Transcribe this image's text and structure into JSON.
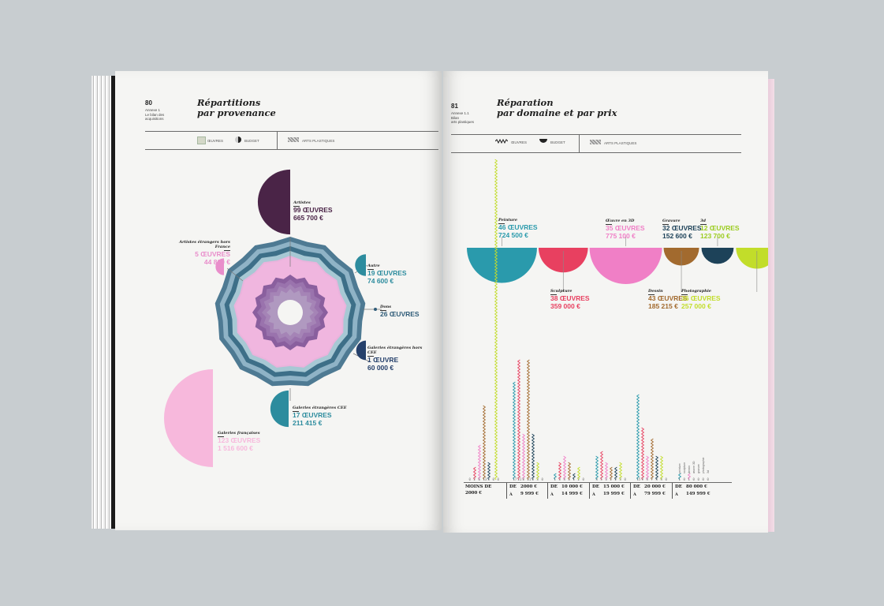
{
  "colors": {
    "teal": "#2a9aac",
    "red": "#e84060",
    "pink": "#f07fc6",
    "brown": "#a26a2e",
    "navy": "#1d4259",
    "lime": "#c2dd2a",
    "slate": "#4e7a93",
    "plum": "#4a2447",
    "light_pink": "#f5a0d0"
  },
  "left_page": {
    "number": "80",
    "meta": [
      "Annexe 1",
      "Le bilan des",
      "acquisitions"
    ],
    "title_line1": "Répartitions",
    "title_line2": "par provenance",
    "legend_works": "ŒUVRES",
    "legend_budget": "BUDGET",
    "legend_section": "ARTS PLASTIQUES"
  },
  "right_page": {
    "number": "81",
    "meta": [
      "Annexe 1.1",
      "Bilan",
      "arts plastiques"
    ],
    "title_line1": "Réparation",
    "title_line2": "par domaine et par prix",
    "legend_works": "ŒUVRES",
    "legend_budget": "BUDGET",
    "legend_section": "ARTS PLASTIQUES"
  },
  "chart_data": [
    {
      "type": "pie",
      "title_line1": "Répartitions",
      "title_line2": "par provenance",
      "slices": [
        {
          "name": "Artistes",
          "works": 99,
          "works_label": "99 ŒUVRES",
          "budget_label": "665 700 €",
          "color": "#4a2447"
        },
        {
          "name": "Artistes étrangers hors France",
          "works": 5,
          "works_label": "5 ŒUVRES",
          "budget_label": "44 800 €",
          "color": "#e98ecb"
        },
        {
          "name": "Autre",
          "works": 19,
          "works_label": "19 ŒUVRES",
          "budget_label": "74 600 €",
          "color": "#2d8c9e"
        },
        {
          "name": "Dons",
          "works": 26,
          "works_label": "26 ŒUVRES",
          "budget_label": "",
          "color": "#2f5c78"
        },
        {
          "name": "Galeries étrangères hors CEE",
          "works": 1,
          "works_label": "1 ŒUVRE",
          "budget_label": "60 000 €",
          "color": "#25406b"
        },
        {
          "name": "Galeries étrangères CEE",
          "works": 17,
          "works_label": "17 ŒUVRES",
          "budget_label": "211 415 €",
          "color": "#2d8c9e"
        },
        {
          "name": "Galeries françaises",
          "works": 123,
          "works_label": "123 ŒUVRES",
          "budget_label": "1 516 600 €",
          "color": "#f7b8dc"
        }
      ]
    },
    {
      "type": "bar",
      "title_line1": "Réparation",
      "title_line2": "par domaine et par prix",
      "domains": [
        {
          "name": "Peinture",
          "works_label": "46 ŒUVRES",
          "budget_label": "724 500 €",
          "budget": 724500,
          "color": "#2a9aac"
        },
        {
          "name": "Sculpture",
          "works_label": "38 ŒUVRES",
          "budget_label": "359 000 €",
          "budget": 359000,
          "color": "#e84060"
        },
        {
          "name": "Œuvre en 3D",
          "works_label": "35 ŒUVRES",
          "budget_label": "775 100 €",
          "budget": 775100,
          "color": "#f07fc6"
        },
        {
          "name": "Dessin",
          "works_label": "43 ŒUVRES",
          "budget_label": "185 215 €",
          "budget": 185215,
          "color": "#a26a2e"
        },
        {
          "name": "Gravure",
          "works_label": "32 ŒUVRES",
          "budget_label": "152 600 €",
          "budget": 152600,
          "color": "#1d4259"
        },
        {
          "name": "Photographie",
          "works_label": "36 ŒUVRES",
          "budget_label": "257 000 €",
          "budget": 257000,
          "color": "#c2dd2a"
        },
        {
          "name": "3d",
          "works_label": "12 ŒUVRES",
          "budget_label": "123 700 €",
          "budget": 123700,
          "color": "#9bcc1f"
        }
      ],
      "series_labels": [
        "peinture",
        "sculpture",
        "dessin",
        "œuvre 3D",
        "gravure",
        "photographie",
        "3d"
      ],
      "price_ranges": [
        {
          "l1": "MOINS DE",
          "l2": "2000 €",
          "counts": [
            0,
            2,
            6,
            13,
            3,
            0,
            0
          ]
        },
        {
          "l1": "DE",
          "l2": "2000 €",
          "a": "À",
          "l3": "9 999 €",
          "counts": [
            17,
            21,
            8,
            21,
            8,
            3,
            0
          ]
        },
        {
          "l1": "DE",
          "l2": "10 000 €",
          "a": "À",
          "l3": "14 999 €",
          "counts": [
            1,
            3,
            4,
            3,
            1,
            2,
            0
          ]
        },
        {
          "l1": "DE",
          "l2": "15 000 €",
          "a": "À",
          "l3": "19 999 €",
          "counts": [
            4,
            5,
            3,
            2,
            2,
            3,
            0
          ]
        },
        {
          "l1": "DE",
          "l2": "20 000 €",
          "a": "À",
          "l3": "79 999 €",
          "counts": [
            15,
            9,
            4,
            7,
            4,
            4,
            0
          ]
        },
        {
          "l1": "DE",
          "l2": "80 000 €",
          "a": "À",
          "l3": "149 999 €",
          "counts": [
            1,
            0,
            1,
            0,
            0,
            0,
            0
          ]
        }
      ]
    }
  ]
}
